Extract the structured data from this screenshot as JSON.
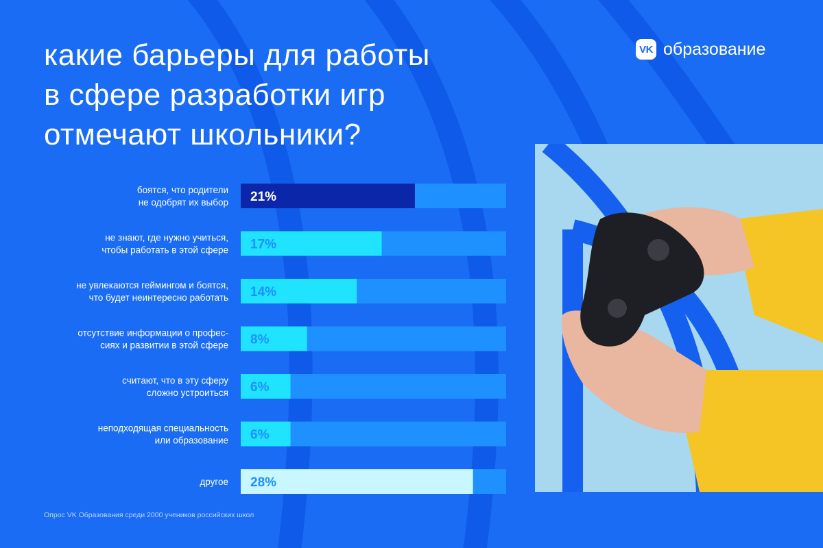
{
  "title_lines": [
    "какие барьеры  для работы",
    "в сфере разработки игр",
    "отмечают школьники?"
  ],
  "brand": {
    "badge": "VK",
    "name": "образование"
  },
  "footnote": "Опрос VK Образования среди 2000 учеников российских школ",
  "colors": {
    "background": "#1a6cf5",
    "track": "#1e90ff",
    "highlight_bar": "#0b26a8",
    "bar_cyan": "#1fe3ff",
    "bar_light": "#c9f7ff"
  },
  "chart_data": {
    "type": "bar",
    "orientation": "horizontal",
    "title": "какие барьеры  для работы в сфере разработки игр отмечают школьники?",
    "unit": "%",
    "xlim": [
      0,
      32
    ],
    "categories": [
      [
        "боятся, что родители",
        "не одобрят их выбор"
      ],
      [
        "не знают, где нужно учиться,",
        "чтобы работать в этой сфере"
      ],
      [
        "не увлекаются геймингом и боятся,",
        "что будет неинтересно работать"
      ],
      [
        "отсутствие информации о профес-",
        "сиях и развитии в этой сфере"
      ],
      [
        "считают, что в эту сферу",
        "сложно устроиться"
      ],
      [
        "неподходящая специальность",
        "или образование"
      ],
      [
        "другое"
      ]
    ],
    "values": [
      21,
      17,
      14,
      8,
      6,
      6,
      28
    ],
    "labels": [
      "21%",
      "17%",
      "14%",
      "8%",
      "6%",
      "6%",
      "28%"
    ]
  }
}
